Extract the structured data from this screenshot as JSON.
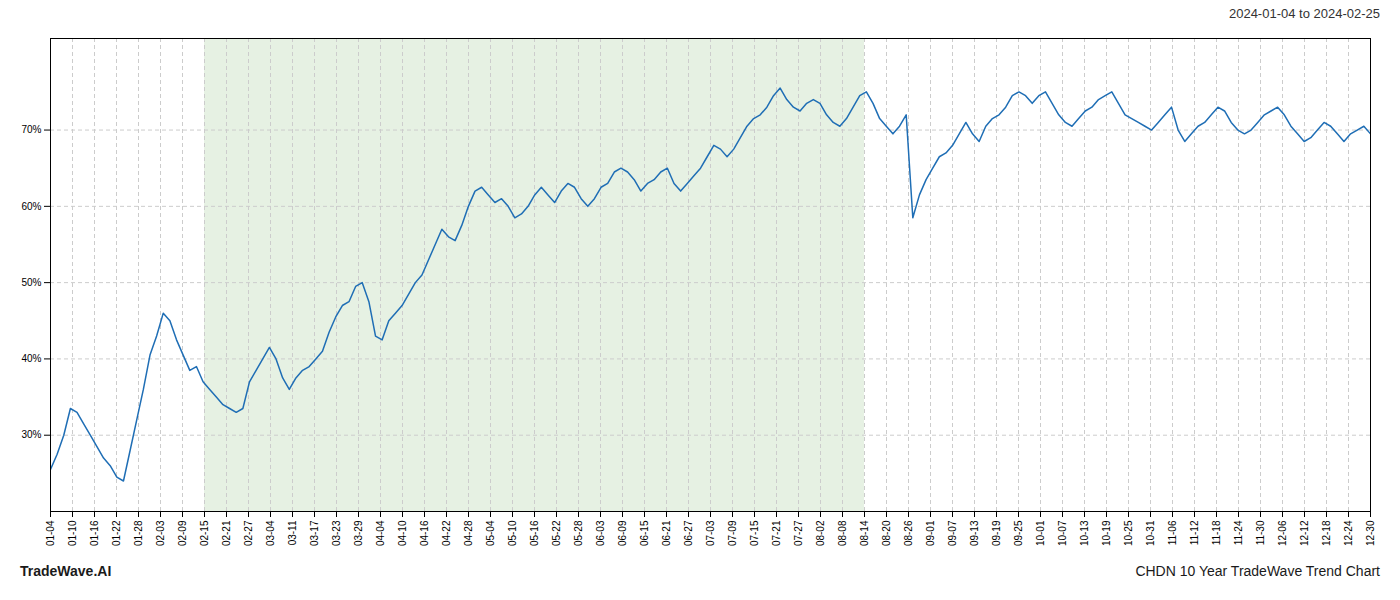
{
  "chart_data": {
    "type": "line",
    "title": "CHDN 10 Year TradeWave Trend Chart",
    "subtitle": "2024-01-04 to 2024-02-25",
    "annotations": [
      "TradeWave.AI"
    ],
    "color": "#1f6eb5",
    "grid": true,
    "shade": {
      "x": [
        7,
        37
      ],
      "color": "#d6e8d0"
    },
    "xlim": [
      0,
      60
    ],
    "xticks": [
      {
        "value": 0,
        "label": "01-04"
      },
      {
        "value": 1,
        "label": "01-10"
      },
      {
        "value": 2,
        "label": "01-16"
      },
      {
        "value": 3,
        "label": "01-22"
      },
      {
        "value": 4,
        "label": "01-28"
      },
      {
        "value": 5,
        "label": "02-03"
      },
      {
        "value": 6,
        "label": "02-09"
      },
      {
        "value": 7,
        "label": "02-15"
      },
      {
        "value": 8,
        "label": "02-21"
      },
      {
        "value": 9,
        "label": "02-27"
      },
      {
        "value": 10,
        "label": "03-04"
      },
      {
        "value": 11,
        "label": "03-11"
      },
      {
        "value": 12,
        "label": "03-17"
      },
      {
        "value": 13,
        "label": "03-23"
      },
      {
        "value": 14,
        "label": "03-29"
      },
      {
        "value": 15,
        "label": "04-04"
      },
      {
        "value": 16,
        "label": "04-10"
      },
      {
        "value": 17,
        "label": "04-16"
      },
      {
        "value": 18,
        "label": "04-22"
      },
      {
        "value": 19,
        "label": "04-28"
      },
      {
        "value": 20,
        "label": "05-04"
      },
      {
        "value": 21,
        "label": "05-10"
      },
      {
        "value": 22,
        "label": "05-16"
      },
      {
        "value": 23,
        "label": "05-22"
      },
      {
        "value": 24,
        "label": "05-28"
      },
      {
        "value": 25,
        "label": "06-03"
      },
      {
        "value": 26,
        "label": "06-09"
      },
      {
        "value": 27,
        "label": "06-15"
      },
      {
        "value": 28,
        "label": "06-21"
      },
      {
        "value": 29,
        "label": "06-27"
      },
      {
        "value": 30,
        "label": "07-03"
      },
      {
        "value": 31,
        "label": "07-09"
      },
      {
        "value": 32,
        "label": "07-15"
      },
      {
        "value": 33,
        "label": "07-21"
      },
      {
        "value": 34,
        "label": "07-27"
      },
      {
        "value": 35,
        "label": "08-02"
      },
      {
        "value": 36,
        "label": "08-08"
      },
      {
        "value": 37,
        "label": "08-14"
      },
      {
        "value": 38,
        "label": "08-20"
      },
      {
        "value": 39,
        "label": "08-26"
      },
      {
        "value": 40,
        "label": "09-01"
      },
      {
        "value": 41,
        "label": "09-07"
      },
      {
        "value": 42,
        "label": "09-13"
      },
      {
        "value": 43,
        "label": "09-19"
      },
      {
        "value": 44,
        "label": "09-25"
      },
      {
        "value": 45,
        "label": "10-01"
      },
      {
        "value": 46,
        "label": "10-07"
      },
      {
        "value": 47,
        "label": "10-13"
      },
      {
        "value": 48,
        "label": "10-19"
      },
      {
        "value": 49,
        "label": "10-25"
      },
      {
        "value": 50,
        "label": "10-31"
      },
      {
        "value": 51,
        "label": "11-06"
      },
      {
        "value": 52,
        "label": "11-12"
      },
      {
        "value": 53,
        "label": "11-18"
      },
      {
        "value": 54,
        "label": "11-24"
      },
      {
        "value": 55,
        "label": "11-30"
      },
      {
        "value": 56,
        "label": "12-06"
      },
      {
        "value": 57,
        "label": "12-12"
      },
      {
        "value": 58,
        "label": "12-18"
      },
      {
        "value": 59,
        "label": "12-24"
      },
      {
        "value": 60,
        "label": "12-30"
      }
    ],
    "ylim": [
      20,
      82
    ],
    "yticks": [
      {
        "value": 30,
        "label": "30%"
      },
      {
        "value": 40,
        "label": "40%"
      },
      {
        "value": 50,
        "label": "50%"
      },
      {
        "value": 60,
        "label": "60%"
      },
      {
        "value": 70,
        "label": "70%"
      }
    ],
    "x": [
      0,
      0.3015,
      0.603,
      0.9045,
      1.206,
      1.5075,
      1.809,
      2.1106,
      2.4121,
      2.7136,
      3.0151,
      3.3166,
      3.6181,
      3.9196,
      4.2211,
      4.5226,
      4.8241,
      5.1256,
      5.4271,
      5.7286,
      6.0302,
      6.3317,
      6.6332,
      6.9347,
      7.2362,
      7.5377,
      7.8392,
      8.1407,
      8.4422,
      8.7437,
      9.0452,
      9.3467,
      9.6482,
      9.9497,
      10.2513,
      10.5528,
      10.8543,
      11.1558,
      11.4573,
      11.7588,
      12.0603,
      12.3618,
      12.6633,
      12.9648,
      13.2663,
      13.5678,
      13.8693,
      14.1709,
      14.4724,
      14.7739,
      15.0754,
      15.3769,
      15.6784,
      15.9799,
      16.2814,
      16.5829,
      16.8844,
      17.1859,
      17.4874,
      17.7889,
      18.0905,
      18.392,
      18.6935,
      18.995,
      19.2965,
      19.598,
      19.8995,
      20.201,
      20.5025,
      20.804,
      21.1055,
      21.407,
      21.7085,
      22.0101,
      22.3116,
      22.6131,
      22.9146,
      23.2161,
      23.5176,
      23.8191,
      24.1206,
      24.4221,
      24.7236,
      25.0251,
      25.3266,
      25.6281,
      25.9296,
      26.2312,
      26.5327,
      26.8342,
      27.1357,
      27.4372,
      27.7387,
      28.0402,
      28.3417,
      28.6432,
      28.9447,
      29.2462,
      29.5477,
      29.8492,
      30.1508,
      30.4523,
      30.7538,
      31.0553,
      31.3568,
      31.6583,
      31.9598,
      32.2613,
      32.5628,
      32.8643,
      33.1658,
      33.4673,
      33.7688,
      34.0704,
      34.3719,
      34.6734,
      34.9749,
      35.2764,
      35.5779,
      35.8794,
      36.1809,
      36.4824,
      36.7839,
      37.0854,
      37.3869,
      37.6884,
      37.9899,
      38.2915,
      38.593,
      38.8945,
      39.196,
      39.4975,
      39.799,
      40.1005,
      40.402,
      40.7035,
      41.005,
      41.3065,
      41.608,
      41.9095,
      42.2111,
      42.5126,
      42.8141,
      43.1156,
      43.4171,
      43.7186,
      44.0201,
      44.3216,
      44.6231,
      44.9246,
      45.2261,
      45.5276,
      45.8291,
      46.1307,
      46.4322,
      46.7337,
      47.0352,
      47.3367,
      47.6382,
      47.9397,
      48.2412,
      48.5427,
      48.8442,
      49.1457,
      49.4472,
      49.7487,
      50.0503,
      50.3518,
      50.6533,
      50.9548,
      51.2563,
      51.5578,
      51.8593,
      52.1608,
      52.4623,
      52.7638,
      53.0653,
      53.3668,
      53.6683,
      53.9698,
      54.2714,
      54.5729,
      54.8744,
      55.1759,
      55.4774,
      55.7789,
      56.0804,
      56.3819,
      56.6834,
      56.9849,
      57.2864,
      57.5879,
      57.8894,
      58.191,
      58.4925,
      58.794,
      59.0955,
      59.397,
      59.6985,
      60
    ],
    "values": [
      25.5,
      27.5,
      30.0,
      33.5,
      33.0,
      31.5,
      30.0,
      28.5,
      27.0,
      26.0,
      24.5,
      24.0,
      28.0,
      32.0,
      36.0,
      40.5,
      43.0,
      46.0,
      45.0,
      42.5,
      40.5,
      38.5,
      39.0,
      37.0,
      36.0,
      35.0,
      34.0,
      33.5,
      33.0,
      33.5,
      37.0,
      38.5,
      40.0,
      41.5,
      40.0,
      37.5,
      36.0,
      37.5,
      38.5,
      39.0,
      40.0,
      41.0,
      43.5,
      45.5,
      47.0,
      47.5,
      49.5,
      50.0,
      47.5,
      43.0,
      42.5,
      45.0,
      46.0,
      47.0,
      48.5,
      50.0,
      51.0,
      53.0,
      55.0,
      57.0,
      56.0,
      55.5,
      57.5,
      60.0,
      62.0,
      62.5,
      61.5,
      60.5,
      61.0,
      60.0,
      58.5,
      59.0,
      60.0,
      61.5,
      62.5,
      61.5,
      60.5,
      62.0,
      63.0,
      62.5,
      61.0,
      60.0,
      61.0,
      62.5,
      63.0,
      64.5,
      65.0,
      64.5,
      63.5,
      62.0,
      63.0,
      63.5,
      64.5,
      65.0,
      63.0,
      62.0,
      63.0,
      64.0,
      65.0,
      66.5,
      68.0,
      67.5,
      66.5,
      67.5,
      69.0,
      70.5,
      71.5,
      72.0,
      73.0,
      74.5,
      75.5,
      74.0,
      73.0,
      72.5,
      73.5,
      74.0,
      73.5,
      72.0,
      71.0,
      70.5,
      71.5,
      73.0,
      74.5,
      75.0,
      73.5,
      71.5,
      70.5,
      69.5,
      70.5,
      72.0,
      58.5,
      61.5,
      63.5,
      65.0,
      66.5,
      67.0,
      68.0,
      69.5,
      71.0,
      69.5,
      68.5,
      70.5,
      71.5,
      72.0,
      73.0,
      74.5,
      75.0,
      74.5,
      73.5,
      74.5,
      75.0,
      73.5,
      72.0,
      71.0,
      70.5,
      71.5,
      72.5,
      73.0,
      74.0,
      74.5,
      75.0,
      73.5,
      72.0,
      71.5,
      71.0,
      70.5,
      70.0,
      71.0,
      72.0,
      73.0,
      70.0,
      68.5,
      69.5,
      70.5,
      71.0,
      72.0,
      73.0,
      72.5,
      71.0,
      70.0,
      69.5,
      70.0,
      71.0,
      72.0,
      72.5,
      73.0,
      72.0,
      70.5,
      69.5,
      68.5,
      69.0,
      70.0,
      71.0,
      70.5,
      69.5,
      68.5,
      69.5,
      70.0,
      70.5,
      69.5
    ]
  }
}
